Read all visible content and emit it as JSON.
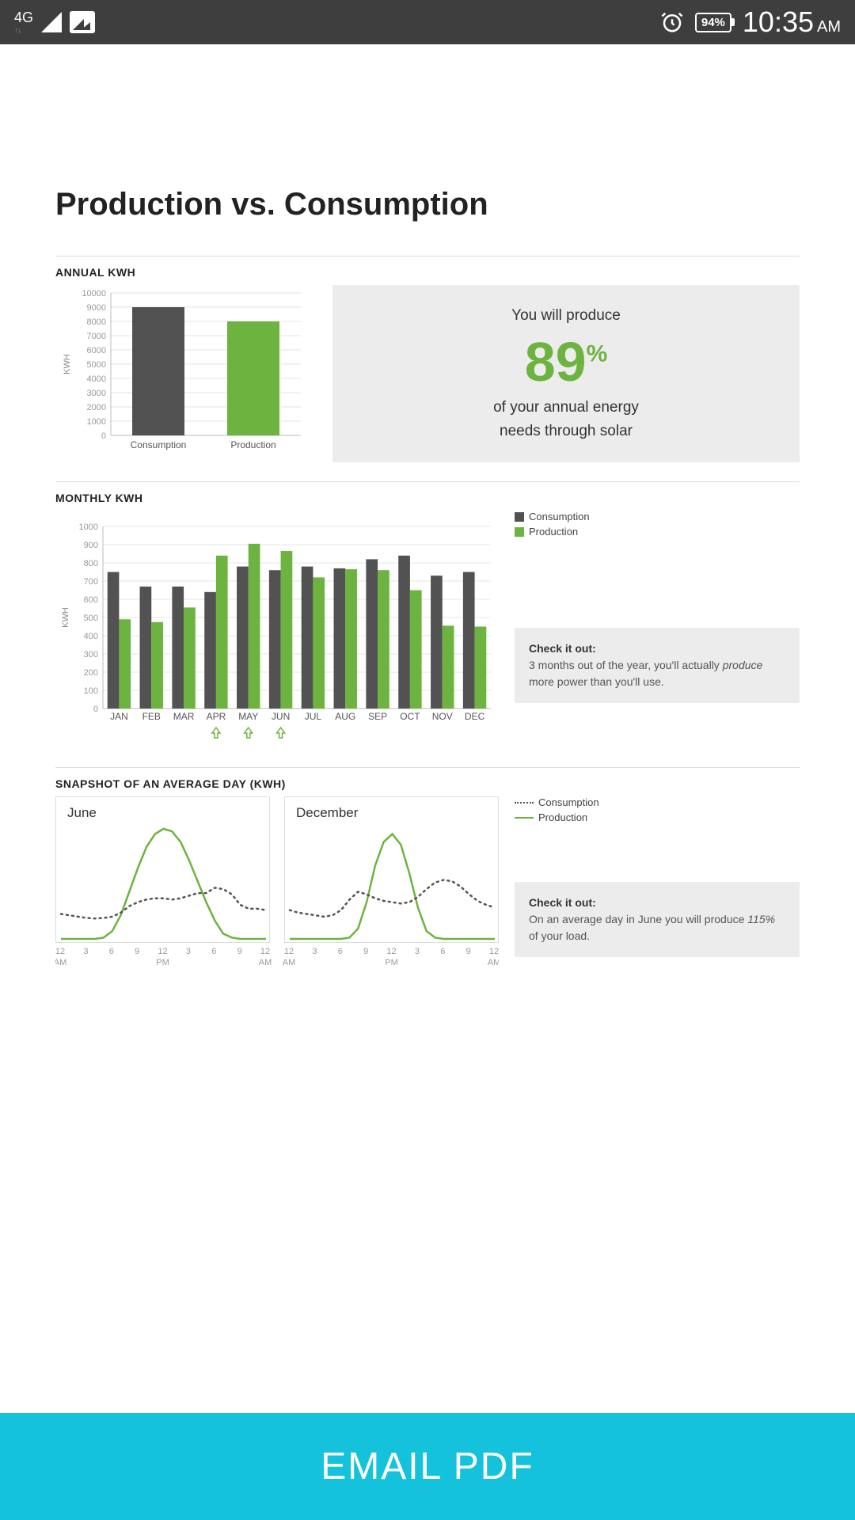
{
  "status_bar": {
    "network": "4G",
    "signal_sub": "2",
    "battery": "94%",
    "time": "10:35",
    "ampm": "AM"
  },
  "page_title": "Production vs. Consumption",
  "annual": {
    "label": "ANNUAL KWH",
    "chart": {
      "type": "bar",
      "categories": [
        "Consumption",
        "Production"
      ],
      "values": [
        9000,
        8000
      ],
      "bar_colors": [
        "#525252",
        "#6db33f"
      ],
      "ylim": [
        0,
        10000
      ],
      "ytick_step": 1000,
      "y_axis_label": "KWH",
      "grid_color": "#e5e5e5",
      "axis_color": "#bbb",
      "tick_fontsize": 11
    },
    "summary": {
      "line1": "You will produce",
      "pct_num": "89",
      "pct_sign": "%",
      "line2": "of your annual energy",
      "line3": "needs through solar",
      "pct_color": "#6db33f",
      "bg_color": "#ececec"
    }
  },
  "monthly": {
    "label": "MONTHLY KWH",
    "chart": {
      "type": "grouped-bar",
      "categories": [
        "JAN",
        "FEB",
        "MAR",
        "APR",
        "MAY",
        "JUN",
        "JUL",
        "AUG",
        "SEP",
        "OCT",
        "NOV",
        "DEC"
      ],
      "consumption": [
        750,
        670,
        670,
        640,
        780,
        760,
        780,
        770,
        820,
        840,
        730,
        750
      ],
      "production": [
        490,
        475,
        555,
        840,
        905,
        865,
        720,
        765,
        760,
        650,
        455,
        450
      ],
      "colors": {
        "consumption": "#525252",
        "production": "#6db33f"
      },
      "ylim": [
        0,
        1000
      ],
      "ytick_step": 100,
      "y_axis_label": "KWH",
      "grid_color": "#e5e5e5",
      "axis_color": "#bbb",
      "highlight_months": [
        "APR",
        "MAY",
        "JUN"
      ],
      "highlight_arrow_color": "#6db33f"
    },
    "legend": [
      {
        "label": "Consumption",
        "color": "#525252"
      },
      {
        "label": "Production",
        "color": "#6db33f"
      }
    ],
    "checkbox": {
      "title": "Check it out:",
      "text_before": "3 months out of the year, you'll actually ",
      "text_italic": "produce",
      "text_after": " more power than you'll use."
    }
  },
  "snapshot": {
    "label": "SNAPSHOT OF AN AVERAGE DAY (KWH)",
    "legend": [
      {
        "label": "Consumption",
        "style": "dash",
        "color": "#555555"
      },
      {
        "label": "Production",
        "style": "solid",
        "color": "#6db33f"
      }
    ],
    "x_ticks": [
      "12",
      "3",
      "6",
      "9",
      "12",
      "3",
      "6",
      "9",
      "12"
    ],
    "x_sub": [
      "AM",
      "",
      "",
      "",
      "PM",
      "",
      "",
      "",
      "AM"
    ],
    "panels": [
      {
        "title": "June",
        "consumption": [
          0.95,
          0.9,
          0.85,
          0.8,
          0.78,
          0.8,
          0.85,
          1.0,
          1.25,
          1.4,
          1.5,
          1.55,
          1.55,
          1.5,
          1.55,
          1.65,
          1.75,
          1.75,
          1.95,
          1.9,
          1.7,
          1.3,
          1.15,
          1.15,
          1.1
        ],
        "production": [
          0.0,
          0.0,
          0.0,
          0.0,
          0.0,
          0.05,
          0.3,
          0.9,
          1.8,
          2.7,
          3.5,
          4.0,
          4.2,
          4.1,
          3.7,
          3.0,
          2.2,
          1.4,
          0.7,
          0.2,
          0.05,
          0.0,
          0.0,
          0.0,
          0.0
        ],
        "y_max": 4.5
      },
      {
        "title": "December",
        "consumption": [
          1.1,
          1.0,
          0.95,
          0.9,
          0.85,
          0.9,
          1.1,
          1.5,
          1.8,
          1.7,
          1.55,
          1.45,
          1.4,
          1.35,
          1.4,
          1.6,
          1.9,
          2.15,
          2.25,
          2.2,
          2.0,
          1.7,
          1.45,
          1.3,
          1.2
        ],
        "production": [
          0.0,
          0.0,
          0.0,
          0.0,
          0.0,
          0.0,
          0.0,
          0.05,
          0.4,
          1.4,
          2.8,
          3.7,
          4.0,
          3.6,
          2.5,
          1.2,
          0.3,
          0.05,
          0.0,
          0.0,
          0.0,
          0.0,
          0.0,
          0.0,
          0.0
        ],
        "y_max": 4.5
      }
    ],
    "checkbox": {
      "title": "Check it out:",
      "text_before": "On an average day in June you will produce ",
      "text_italic": "115%",
      "text_after": " of your load."
    }
  },
  "email_button": {
    "label": "EMAIL PDF",
    "bg_color": "#14c2dc"
  }
}
